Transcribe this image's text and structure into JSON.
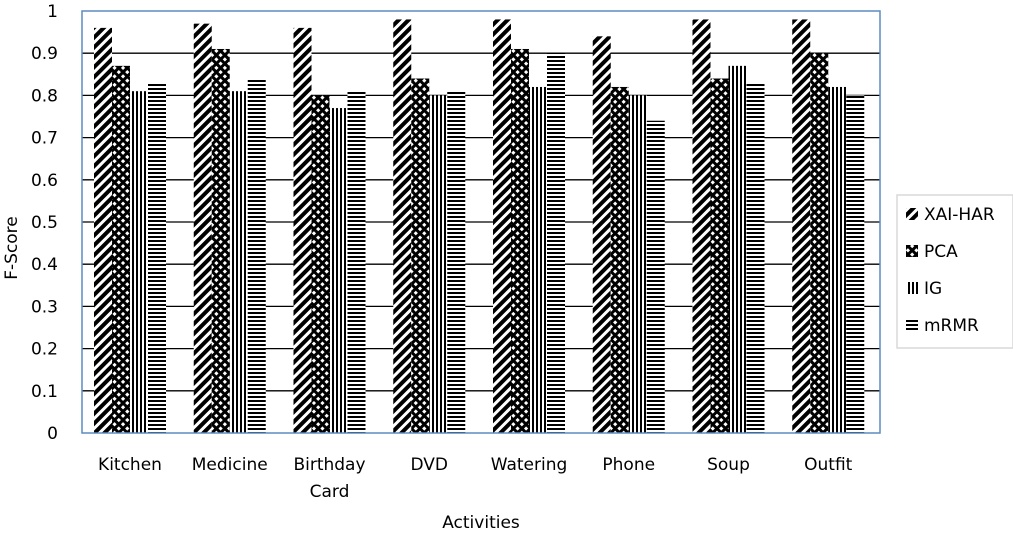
{
  "chart_data": {
    "type": "bar",
    "title": "",
    "xlabel": "Activities",
    "ylabel": "F-Score",
    "ylim": [
      0,
      1
    ],
    "yticks": [
      "0",
      "0.1",
      "0.2",
      "0.3",
      "0.4",
      "0.5",
      "0.6",
      "0.7",
      "0.8",
      "0.9",
      "1"
    ],
    "categories": [
      [
        "Kitchen"
      ],
      [
        "Medicine"
      ],
      [
        "Birthday",
        "Card"
      ],
      [
        "DVD"
      ],
      [
        "Watering"
      ],
      [
        "Phone"
      ],
      [
        "Soup"
      ],
      [
        "Outfit"
      ]
    ],
    "series": [
      {
        "name": "XAI-HAR",
        "pattern": "diagonal-stripes",
        "values": [
          0.96,
          0.97,
          0.96,
          0.98,
          0.98,
          0.94,
          0.98,
          0.98
        ]
      },
      {
        "name": "PCA",
        "pattern": "crosshatch",
        "values": [
          0.87,
          0.91,
          0.8,
          0.84,
          0.91,
          0.82,
          0.84,
          0.9
        ]
      },
      {
        "name": "IG",
        "pattern": "vertical-stripes",
        "values": [
          0.81,
          0.81,
          0.77,
          0.8,
          0.82,
          0.8,
          0.87,
          0.82
        ]
      },
      {
        "name": "mRMR",
        "pattern": "horizontal-stripes",
        "values": [
          0.83,
          0.84,
          0.81,
          0.81,
          0.9,
          0.74,
          0.83,
          0.8
        ]
      }
    ],
    "grid": true,
    "legend_position": "right",
    "colors": {
      "ink": "#000000",
      "background": "#ffffff",
      "plot_border": "#5b8bc0",
      "frame_border": "#d9d9d9"
    }
  }
}
